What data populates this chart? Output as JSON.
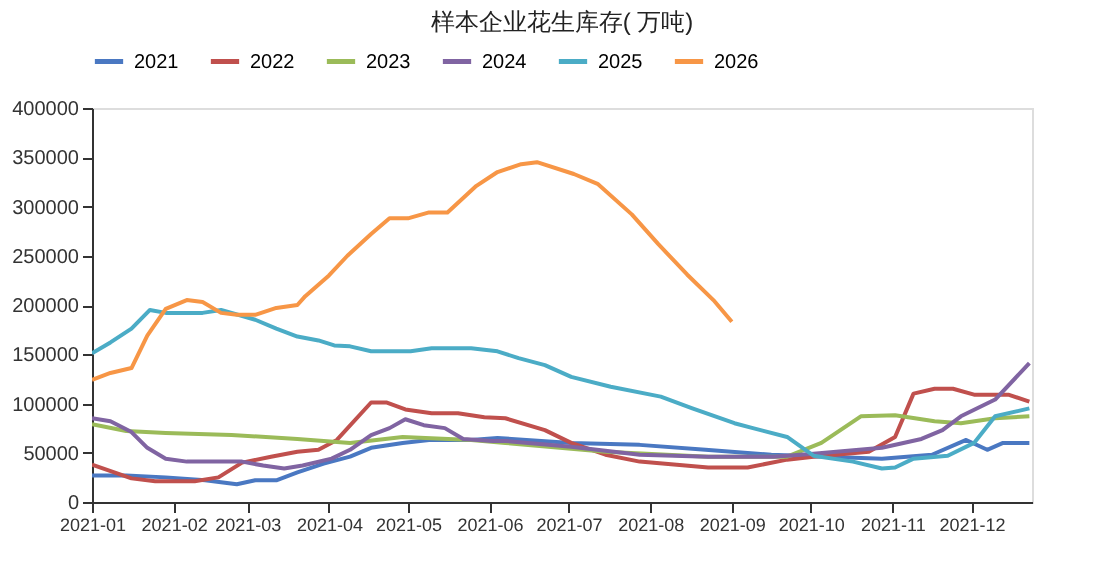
{
  "chart_data": {
    "type": "line",
    "title": "样本企业花生库存( 万吨)",
    "xlim": [
      "2021-01-01",
      "2021-12-24"
    ],
    "xticks": [
      "2021-01",
      "2021-02",
      "2021-03",
      "2021-04",
      "2021-05",
      "2021-06",
      "2021-07",
      "2021-08",
      "2021-09",
      "2021-10",
      "2021-11",
      "2021-12"
    ],
    "ylim": [
      0,
      400000
    ],
    "yticks": [
      0,
      50000,
      100000,
      150000,
      200000,
      250000,
      300000,
      350000,
      400000
    ],
    "grid": false,
    "legend": "top",
    "marker": "none",
    "line_style": "solid",
    "series": [
      {
        "name": "2021",
        "color": "#4a78c2",
        "x": [
          "2021-01-01",
          "2021-01-14",
          "2021-01-29",
          "2021-02-13",
          "2021-02-25",
          "2021-03-04",
          "2021-03-12",
          "2021-03-20",
          "2021-03-30",
          "2021-04-09",
          "2021-04-17",
          "2021-04-29",
          "2021-05-09",
          "2021-05-25",
          "2021-06-04",
          "2021-07-02",
          "2021-07-28",
          "2021-08-22",
          "2021-09-16",
          "2021-10-07",
          "2021-10-28",
          "2021-11-16",
          "2021-11-29",
          "2021-12-07",
          "2021-12-13",
          "2021-12-23"
        ],
        "values": [
          27000,
          27000,
          25000,
          22000,
          18000,
          22000,
          22000,
          30000,
          39000,
          46000,
          55000,
          60000,
          63000,
          63000,
          65000,
          60000,
          58000,
          53000,
          48000,
          46000,
          44000,
          48000,
          63000,
          53000,
          60000,
          60000
        ]
      },
      {
        "name": "2022",
        "color": "#c0504d",
        "x": [
          "2021-01-01",
          "2021-01-16",
          "2021-01-25",
          "2021-02-09",
          "2021-02-18",
          "2021-02-27",
          "2021-03-10",
          "2021-03-20",
          "2021-03-28",
          "2021-04-04",
          "2021-04-17",
          "2021-04-23",
          "2021-04-30",
          "2021-05-10",
          "2021-05-20",
          "2021-05-30",
          "2021-06-07",
          "2021-06-22",
          "2021-07-02",
          "2021-07-15",
          "2021-07-28",
          "2021-08-10",
          "2021-08-23",
          "2021-09-07",
          "2021-09-22",
          "2021-10-02",
          "2021-10-23",
          "2021-11-02",
          "2021-11-09",
          "2021-11-17",
          "2021-11-24",
          "2021-12-02",
          "2021-12-15",
          "2021-12-23"
        ],
        "values": [
          38000,
          24000,
          21000,
          21000,
          25000,
          40000,
          46000,
          51000,
          53000,
          63000,
          101000,
          101000,
          94000,
          90000,
          90000,
          86000,
          85000,
          73000,
          60000,
          48000,
          41000,
          38000,
          35000,
          35000,
          43000,
          46000,
          51000,
          66000,
          110000,
          115000,
          115000,
          109000,
          109000,
          102000
        ]
      },
      {
        "name": "2023",
        "color": "#9bbb59",
        "x": [
          "2021-01-01",
          "2021-01-14",
          "2021-01-29",
          "2021-02-23",
          "2021-03-20",
          "2021-04-09",
          "2021-04-29",
          "2021-05-25",
          "2021-06-07",
          "2021-07-15",
          "2021-08-23",
          "2021-09-22",
          "2021-10-05",
          "2021-10-20",
          "2021-11-02",
          "2021-11-17",
          "2021-11-27",
          "2021-12-10",
          "2021-12-23"
        ],
        "values": [
          79000,
          72000,
          70000,
          68000,
          64000,
          60000,
          66000,
          63000,
          60000,
          51000,
          46000,
          46000,
          60000,
          87000,
          88000,
          82000,
          80000,
          85000,
          87000
        ]
      },
      {
        "name": "2024",
        "color": "#8064a2",
        "x": [
          "2021-01-01",
          "2021-01-08",
          "2021-01-16",
          "2021-01-22",
          "2021-01-29",
          "2021-02-06",
          "2021-02-27",
          "2021-03-07",
          "2021-03-15",
          "2021-03-22",
          "2021-04-02",
          "2021-04-09",
          "2021-04-17",
          "2021-04-24",
          "2021-04-30",
          "2021-05-07",
          "2021-05-15",
          "2021-05-22",
          "2021-06-02",
          "2021-06-07",
          "2021-07-02",
          "2021-07-28",
          "2021-08-23",
          "2021-09-17",
          "2021-10-02",
          "2021-10-28",
          "2021-11-12",
          "2021-11-20",
          "2021-11-27",
          "2021-12-10",
          "2021-12-23"
        ],
        "values": [
          85000,
          82000,
          71000,
          55000,
          44000,
          41000,
          41000,
          37000,
          34000,
          37000,
          44000,
          53000,
          68000,
          75000,
          84000,
          78000,
          75000,
          64000,
          62000,
          62000,
          56000,
          48000,
          46000,
          46000,
          49000,
          55000,
          64000,
          73000,
          87000,
          104000,
          141000
        ]
      },
      {
        "name": "2025",
        "color": "#4bacc6",
        "x": [
          "2021-01-01",
          "2021-01-08",
          "2021-01-16",
          "2021-01-23",
          "2021-01-29",
          "2021-02-12",
          "2021-02-19",
          "2021-03-04",
          "2021-03-12",
          "2021-03-20",
          "2021-03-28",
          "2021-04-03",
          "2021-04-09",
          "2021-04-17",
          "2021-05-02",
          "2021-05-10",
          "2021-05-25",
          "2021-06-04",
          "2021-06-12",
          "2021-06-22",
          "2021-07-02",
          "2021-07-17",
          "2021-08-05",
          "2021-08-17",
          "2021-09-02",
          "2021-09-09",
          "2021-09-22",
          "2021-10-02",
          "2021-10-17",
          "2021-10-28",
          "2021-11-02",
          "2021-11-09",
          "2021-11-22",
          "2021-12-02",
          "2021-12-10",
          "2021-12-23"
        ],
        "values": [
          151000,
          162000,
          176000,
          195000,
          192000,
          192000,
          195000,
          185000,
          176000,
          168000,
          164000,
          159000,
          158000,
          153000,
          153000,
          156000,
          156000,
          153000,
          146000,
          139000,
          127000,
          117000,
          107000,
          95000,
          80000,
          75000,
          66000,
          47000,
          41000,
          34000,
          35000,
          44000,
          47000,
          60000,
          87000,
          95000
        ]
      },
      {
        "name": "2026",
        "color": "#f79646",
        "x": [
          "2021-01-01",
          "2021-01-08",
          "2021-01-16",
          "2021-01-22",
          "2021-01-29",
          "2021-02-06",
          "2021-02-12",
          "2021-02-19",
          "2021-02-25",
          "2021-03-04",
          "2021-03-12",
          "2021-03-20",
          "2021-03-23",
          "2021-04-01",
          "2021-04-08",
          "2021-04-17",
          "2021-04-24",
          "2021-05-01",
          "2021-05-09",
          "2021-05-16",
          "2021-05-27",
          "2021-06-04",
          "2021-06-13",
          "2021-06-19",
          "2021-07-03",
          "2021-07-12",
          "2021-07-25",
          "2021-08-04",
          "2021-08-15",
          "2021-08-25",
          "2021-09-01"
        ],
        "values": [
          124000,
          131000,
          136000,
          169000,
          196000,
          205000,
          203000,
          192000,
          190000,
          190000,
          197000,
          200000,
          209000,
          230000,
          250000,
          272000,
          288000,
          288000,
          294000,
          294000,
          321000,
          335000,
          343000,
          345000,
          333000,
          323000,
          292000,
          262000,
          231000,
          205000,
          183000
        ]
      }
    ]
  }
}
